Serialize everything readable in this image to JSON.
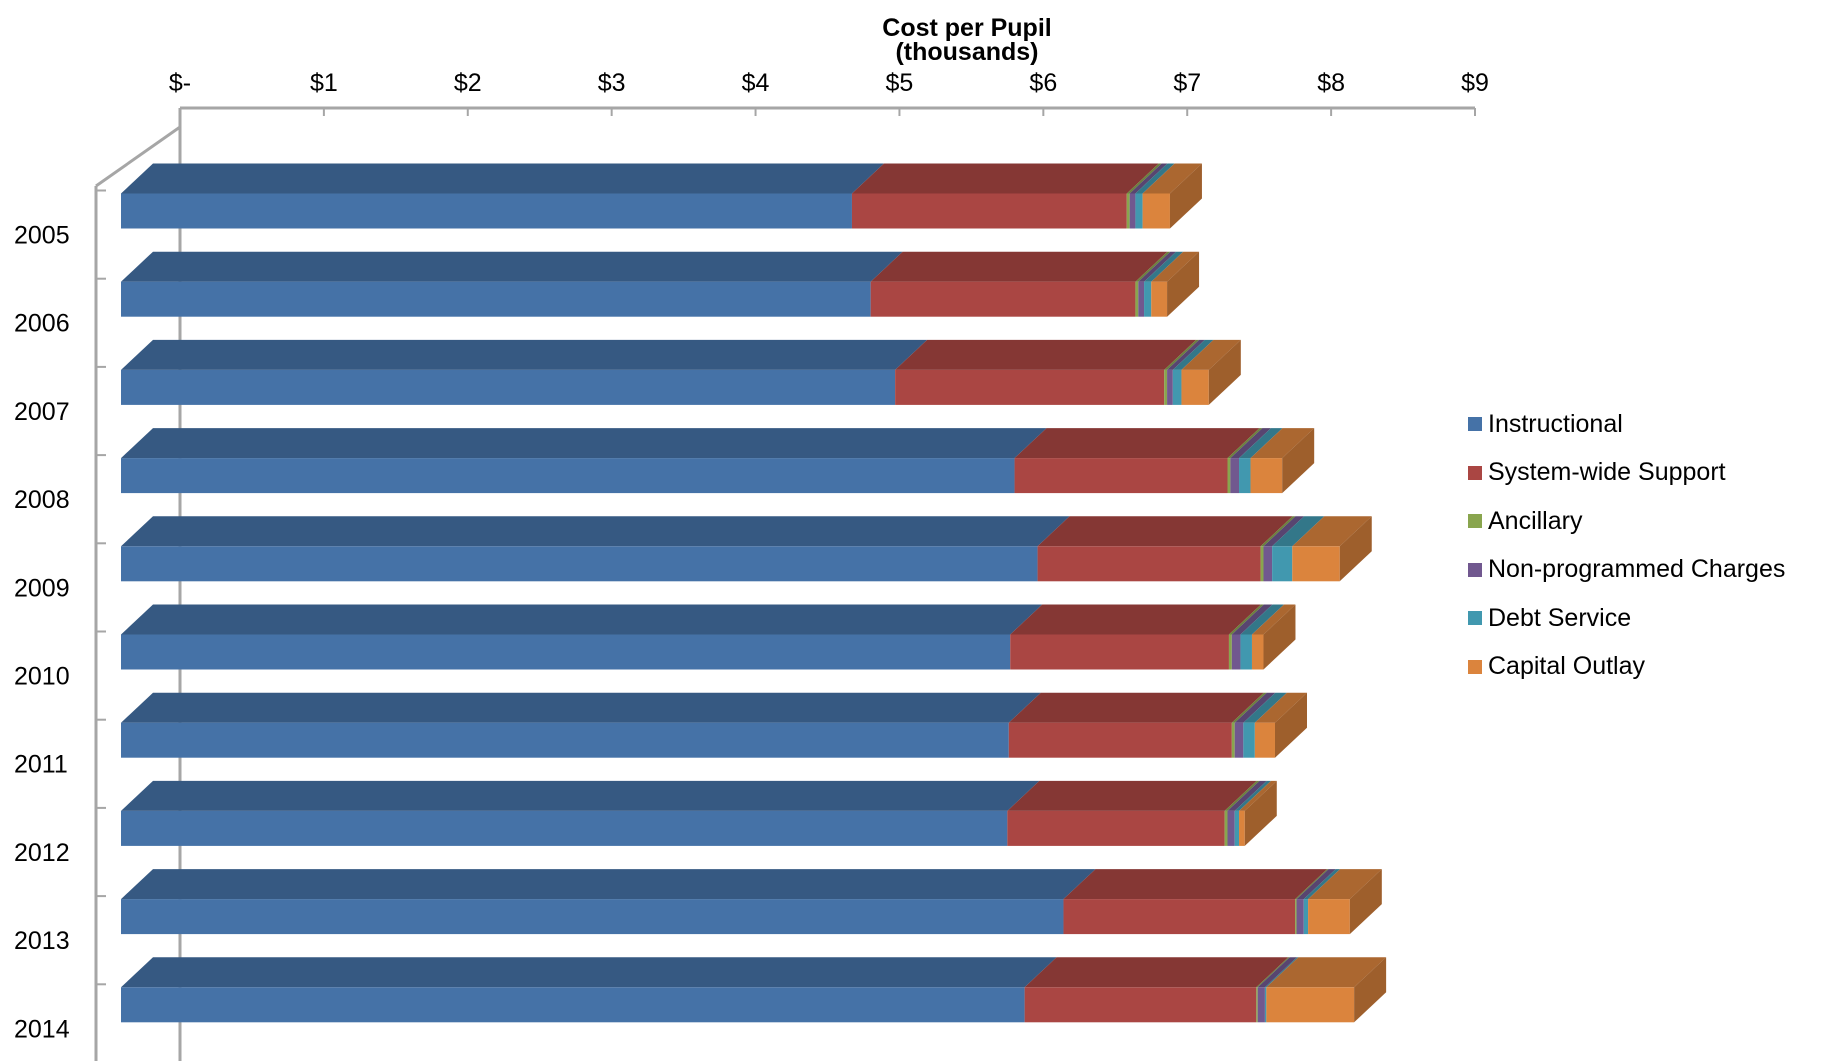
{
  "chart_data": {
    "type": "bar",
    "orientation": "horizontal",
    "stacked": true,
    "three_d": true,
    "title": "Cost per Pupil\n(thousands)",
    "xlabel": "",
    "ylabel": "",
    "axis_position": "top",
    "xlim": [
      0,
      9
    ],
    "x_ticks": [
      "$-",
      "$1",
      "$2",
      "$3",
      "$4",
      "$5",
      "$6",
      "$7",
      "$8",
      "$9"
    ],
    "grid": false,
    "legend_position": "right",
    "categories": [
      "2005",
      "2006",
      "2007",
      "2008",
      "2009",
      "2010",
      "2011",
      "2012",
      "2013",
      "2014"
    ],
    "series": [
      {
        "name": "Instructional",
        "color": "#4572A7",
        "values": [
          5.08,
          5.21,
          5.38,
          6.21,
          6.37,
          6.18,
          6.17,
          6.16,
          6.55,
          6.28
        ]
      },
      {
        "name": "System-wide Support",
        "color": "#AA4643",
        "values": [
          1.91,
          1.84,
          1.87,
          1.48,
          1.55,
          1.52,
          1.55,
          1.51,
          1.61,
          1.61
        ]
      },
      {
        "name": "Ancillary",
        "color": "#89A54E",
        "values": [
          0.02,
          0.02,
          0.02,
          0.02,
          0.02,
          0.02,
          0.02,
          0.02,
          0.01,
          0.01
        ]
      },
      {
        "name": "Non-programmed Charges",
        "color": "#71588F",
        "values": [
          0.04,
          0.04,
          0.04,
          0.06,
          0.06,
          0.06,
          0.06,
          0.05,
          0.05,
          0.05
        ]
      },
      {
        "name": "Debt Service",
        "color": "#4198AF",
        "values": [
          0.05,
          0.05,
          0.06,
          0.08,
          0.14,
          0.08,
          0.08,
          0.03,
          0.03,
          0.01
        ]
      },
      {
        "name": "Capital Outlay",
        "color": "#DB843D",
        "values": [
          0.19,
          0.11,
          0.19,
          0.22,
          0.33,
          0.08,
          0.14,
          0.04,
          0.29,
          0.61
        ]
      }
    ]
  }
}
